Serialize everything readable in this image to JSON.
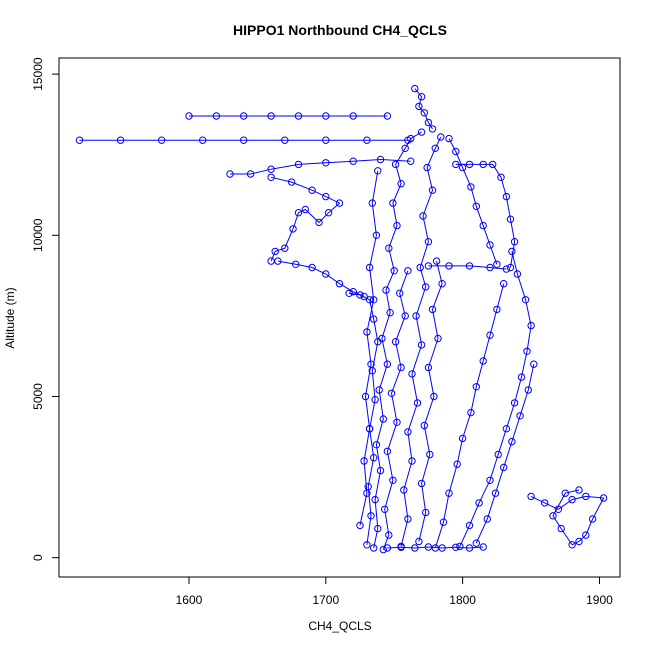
{
  "chart_data": {
    "type": "scatter",
    "title": "HIPPO1 Northbound CH4_QCLS",
    "xlabel": "CH4_QCLS",
    "ylabel": "Altitude (m)",
    "xlim": [
      1505,
      1915
    ],
    "ylim": [
      -600,
      15500
    ],
    "x_ticks": [
      1600,
      1700,
      1800,
      1900
    ],
    "y_ticks": [
      0,
      5000,
      10000,
      15000
    ],
    "marker": "open-circle",
    "connected": true,
    "grid": false,
    "legend": "none",
    "color": "#0000ff",
    "series": [
      {
        "points": [
          [
            1735,
            300
          ],
          [
            1738,
            900
          ],
          [
            1736,
            1800
          ],
          [
            1740,
            2700
          ],
          [
            1737,
            3500
          ],
          [
            1742,
            4300
          ],
          [
            1739,
            5200
          ],
          [
            1745,
            6000
          ],
          [
            1741,
            6800
          ],
          [
            1747,
            7600
          ],
          [
            1744,
            8300
          ],
          [
            1750,
            8900
          ],
          [
            1746,
            9600
          ],
          [
            1752,
            10300
          ],
          [
            1749,
            11000
          ],
          [
            1755,
            11600
          ],
          [
            1751,
            12200
          ],
          [
            1758,
            12700
          ],
          [
            1762,
            13000
          ],
          [
            1770,
            13200
          ]
        ]
      },
      {
        "points": [
          [
            1755,
            350
          ],
          [
            1760,
            1200
          ],
          [
            1757,
            2100
          ],
          [
            1763,
            3000
          ],
          [
            1760,
            3900
          ],
          [
            1767,
            4800
          ],
          [
            1763,
            5700
          ],
          [
            1770,
            6600
          ],
          [
            1766,
            7500
          ],
          [
            1773,
            8400
          ],
          [
            1769,
            9000
          ],
          [
            1775,
            9800
          ],
          [
            1771,
            10600
          ],
          [
            1778,
            11400
          ],
          [
            1774,
            12100
          ],
          [
            1780,
            12700
          ],
          [
            1784,
            13050
          ]
        ]
      },
      {
        "points": [
          [
            1742,
            250
          ],
          [
            1746,
            700
          ],
          [
            1743,
            1500
          ],
          [
            1749,
            2400
          ],
          [
            1745,
            3300
          ],
          [
            1752,
            4200
          ],
          [
            1748,
            5100
          ],
          [
            1755,
            5900
          ],
          [
            1751,
            6700
          ],
          [
            1758,
            7500
          ],
          [
            1754,
            8200
          ],
          [
            1760,
            8900
          ]
        ]
      },
      {
        "points": [
          [
            1780,
            300
          ],
          [
            1786,
            1100
          ],
          [
            1790,
            2000
          ],
          [
            1796,
            2900
          ],
          [
            1800,
            3700
          ],
          [
            1806,
            4500
          ],
          [
            1810,
            5300
          ],
          [
            1815,
            6100
          ],
          [
            1820,
            6900
          ],
          [
            1825,
            7700
          ],
          [
            1830,
            8500
          ]
        ]
      },
      {
        "points": [
          [
            1730,
            400
          ],
          [
            1733,
            1300
          ],
          [
            1731,
            2200
          ],
          [
            1735,
            3100
          ],
          [
            1732,
            4000
          ],
          [
            1736,
            4900
          ],
          [
            1734,
            5800
          ],
          [
            1738,
            6700
          ],
          [
            1735,
            7400
          ],
          [
            1732,
            8000
          ],
          [
            1725,
            8150
          ],
          [
            1717,
            8200
          ]
        ]
      },
      {
        "points": [
          [
            1798,
            350
          ],
          [
            1805,
            1000
          ],
          [
            1812,
            1700
          ],
          [
            1820,
            2400
          ],
          [
            1826,
            3200
          ],
          [
            1832,
            4000
          ],
          [
            1838,
            4800
          ],
          [
            1843,
            5600
          ],
          [
            1847,
            6400
          ],
          [
            1850,
            7200
          ],
          [
            1846,
            8000
          ],
          [
            1840,
            8800
          ],
          [
            1836,
            9500
          ]
        ]
      },
      {
        "points": [
          [
            1810,
            450
          ],
          [
            1818,
            1200
          ],
          [
            1824,
            2000
          ],
          [
            1830,
            2800
          ],
          [
            1836,
            3600
          ],
          [
            1842,
            4400
          ],
          [
            1848,
            5200
          ],
          [
            1852,
            6000
          ]
        ]
      },
      {
        "points": [
          [
            1835,
            9000
          ],
          [
            1838,
            9800
          ],
          [
            1835,
            10500
          ],
          [
            1832,
            11200
          ],
          [
            1828,
            11800
          ],
          [
            1822,
            12200
          ],
          [
            1815,
            12200
          ],
          [
            1805,
            12200
          ],
          [
            1795,
            12200
          ]
        ]
      },
      {
        "points": [
          [
            1825,
            9100
          ],
          [
            1820,
            9700
          ],
          [
            1815,
            10300
          ],
          [
            1810,
            10900
          ],
          [
            1806,
            11500
          ],
          [
            1800,
            12100
          ],
          [
            1795,
            12600
          ],
          [
            1790,
            13000
          ]
        ]
      },
      {
        "points": [
          [
            1775,
            9050
          ],
          [
            1790,
            9050
          ],
          [
            1805,
            9050
          ],
          [
            1820,
            9000
          ],
          [
            1832,
            8950
          ]
        ]
      },
      {
        "points": [
          [
            1762,
            12300
          ],
          [
            1740,
            12350
          ],
          [
            1720,
            12300
          ],
          [
            1700,
            12250
          ],
          [
            1680,
            12200
          ],
          [
            1660,
            12050
          ],
          [
            1645,
            11900
          ],
          [
            1630,
            11900
          ]
        ]
      },
      {
        "points": [
          [
            1660,
            11800
          ],
          [
            1675,
            11650
          ],
          [
            1690,
            11400
          ],
          [
            1700,
            11200
          ],
          [
            1710,
            11000
          ],
          [
            1702,
            10700
          ],
          [
            1695,
            10400
          ],
          [
            1685,
            10800
          ],
          [
            1680,
            10700
          ],
          [
            1676,
            10200
          ],
          [
            1670,
            9600
          ],
          [
            1663,
            9500
          ],
          [
            1660,
            9200
          ]
        ]
      },
      {
        "points": [
          [
            1665,
            9200
          ],
          [
            1678,
            9100
          ],
          [
            1690,
            9000
          ],
          [
            1700,
            8800
          ],
          [
            1710,
            8500
          ],
          [
            1720,
            8250
          ],
          [
            1728,
            8100
          ]
        ]
      },
      {
        "points": [
          [
            1760,
            12950
          ],
          [
            1730,
            12950
          ],
          [
            1700,
            12950
          ],
          [
            1670,
            12950
          ],
          [
            1640,
            12950
          ],
          [
            1610,
            12950
          ],
          [
            1580,
            12950
          ],
          [
            1550,
            12950
          ],
          [
            1520,
            12950
          ]
        ]
      },
      {
        "points": [
          [
            1745,
            13700
          ],
          [
            1720,
            13700
          ],
          [
            1700,
            13700
          ],
          [
            1680,
            13700
          ],
          [
            1660,
            13700
          ],
          [
            1640,
            13700
          ],
          [
            1620,
            13700
          ],
          [
            1600,
            13700
          ]
        ]
      },
      {
        "points": [
          [
            1765,
            14550
          ],
          [
            1770,
            14300
          ],
          [
            1768,
            14000
          ],
          [
            1772,
            13800
          ],
          [
            1775,
            13500
          ],
          [
            1778,
            13300
          ]
        ]
      },
      {
        "points": [
          [
            1850,
            1900
          ],
          [
            1860,
            1700
          ],
          [
            1870,
            1500
          ],
          [
            1880,
            1800
          ],
          [
            1890,
            1900
          ],
          [
            1903,
            1850
          ],
          [
            1895,
            1200
          ],
          [
            1890,
            700
          ],
          [
            1885,
            500
          ],
          [
            1880,
            400
          ],
          [
            1872,
            900
          ],
          [
            1866,
            1300
          ],
          [
            1875,
            2000
          ],
          [
            1885,
            2100
          ]
        ]
      },
      {
        "points": [
          [
            1745,
            300
          ],
          [
            1755,
            320
          ],
          [
            1765,
            300
          ],
          [
            1775,
            330
          ],
          [
            1785,
            300
          ],
          [
            1795,
            320
          ],
          [
            1805,
            300
          ],
          [
            1815,
            330
          ]
        ]
      },
      {
        "points": [
          [
            1725,
            1000
          ],
          [
            1730,
            2000
          ],
          [
            1728,
            3000
          ],
          [
            1732,
            4000
          ],
          [
            1729,
            5000
          ],
          [
            1733,
            6000
          ],
          [
            1730,
            7000
          ],
          [
            1735,
            8000
          ],
          [
            1732,
            9000
          ],
          [
            1737,
            10000
          ],
          [
            1734,
            11000
          ],
          [
            1738,
            12000
          ]
        ]
      },
      {
        "points": [
          [
            1768,
            500
          ],
          [
            1773,
            1400
          ],
          [
            1770,
            2300
          ],
          [
            1776,
            3200
          ],
          [
            1772,
            4100
          ],
          [
            1779,
            5000
          ],
          [
            1775,
            5900
          ],
          [
            1782,
            6800
          ],
          [
            1778,
            7700
          ],
          [
            1785,
            8500
          ],
          [
            1781,
            9200
          ]
        ]
      }
    ]
  }
}
